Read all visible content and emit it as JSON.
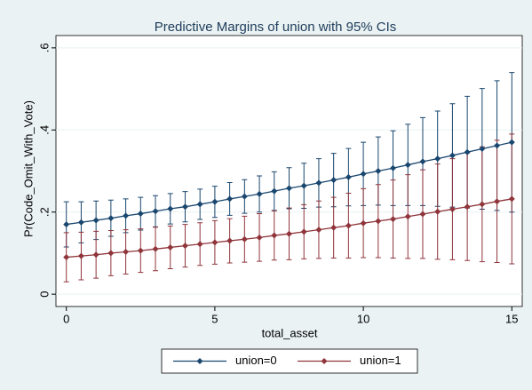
{
  "chart_data": {
    "type": "errorbar_line",
    "title": "Predictive Margins of union with 95% CIs",
    "xlabel": "total_asset",
    "ylabel": "Pr(Code_Omit_With_Vote)",
    "x": [
      0,
      0.5,
      1,
      1.5,
      2,
      2.5,
      3,
      3.5,
      4,
      4.5,
      5,
      5.5,
      6,
      6.5,
      7,
      7.5,
      8,
      8.5,
      9,
      9.5,
      10,
      10.5,
      11,
      11.5,
      12,
      12.5,
      13,
      13.5,
      14,
      14.5,
      15
    ],
    "series": [
      {
        "name": "union=0",
        "color": "#1a476f",
        "values": [
          0.17,
          0.175,
          0.18,
          0.185,
          0.191,
          0.196,
          0.202,
          0.208,
          0.213,
          0.219,
          0.225,
          0.232,
          0.238,
          0.244,
          0.251,
          0.258,
          0.264,
          0.271,
          0.278,
          0.285,
          0.293,
          0.3,
          0.307,
          0.315,
          0.323,
          0.33,
          0.338,
          0.346,
          0.354,
          0.362,
          0.37
        ],
        "errors": [
          0.055,
          0.05,
          0.047,
          0.044,
          0.041,
          0.04,
          0.038,
          0.037,
          0.037,
          0.037,
          0.038,
          0.04,
          0.041,
          0.044,
          0.047,
          0.05,
          0.055,
          0.059,
          0.065,
          0.07,
          0.077,
          0.083,
          0.091,
          0.099,
          0.107,
          0.116,
          0.126,
          0.136,
          0.147,
          0.158,
          0.17
        ]
      },
      {
        "name": "union=1",
        "color": "#90353b",
        "values": [
          0.09,
          0.093,
          0.096,
          0.1,
          0.103,
          0.106,
          0.11,
          0.114,
          0.118,
          0.122,
          0.126,
          0.13,
          0.134,
          0.138,
          0.143,
          0.147,
          0.152,
          0.157,
          0.162,
          0.167,
          0.173,
          0.178,
          0.183,
          0.189,
          0.195,
          0.201,
          0.207,
          0.213,
          0.219,
          0.226,
          0.232
        ],
        "errors": [
          0.06,
          0.058,
          0.057,
          0.055,
          0.054,
          0.053,
          0.053,
          0.052,
          0.052,
          0.052,
          0.053,
          0.054,
          0.056,
          0.058,
          0.06,
          0.063,
          0.066,
          0.07,
          0.074,
          0.079,
          0.084,
          0.089,
          0.095,
          0.102,
          0.108,
          0.116,
          0.123,
          0.131,
          0.14,
          0.149,
          0.158
        ]
      }
    ],
    "xlim": [
      -0.35,
      15.35
    ],
    "xticks": [
      0,
      5,
      10,
      15
    ],
    "ylim": [
      -0.03,
      0.63
    ],
    "yticks": [
      0,
      {
        "value": 0.2,
        "label": ".2"
      },
      {
        "value": 0.4,
        "label": ".4"
      },
      {
        "value": 0.6,
        "label": ".6"
      }
    ],
    "grid": true,
    "legend": "bottom"
  }
}
